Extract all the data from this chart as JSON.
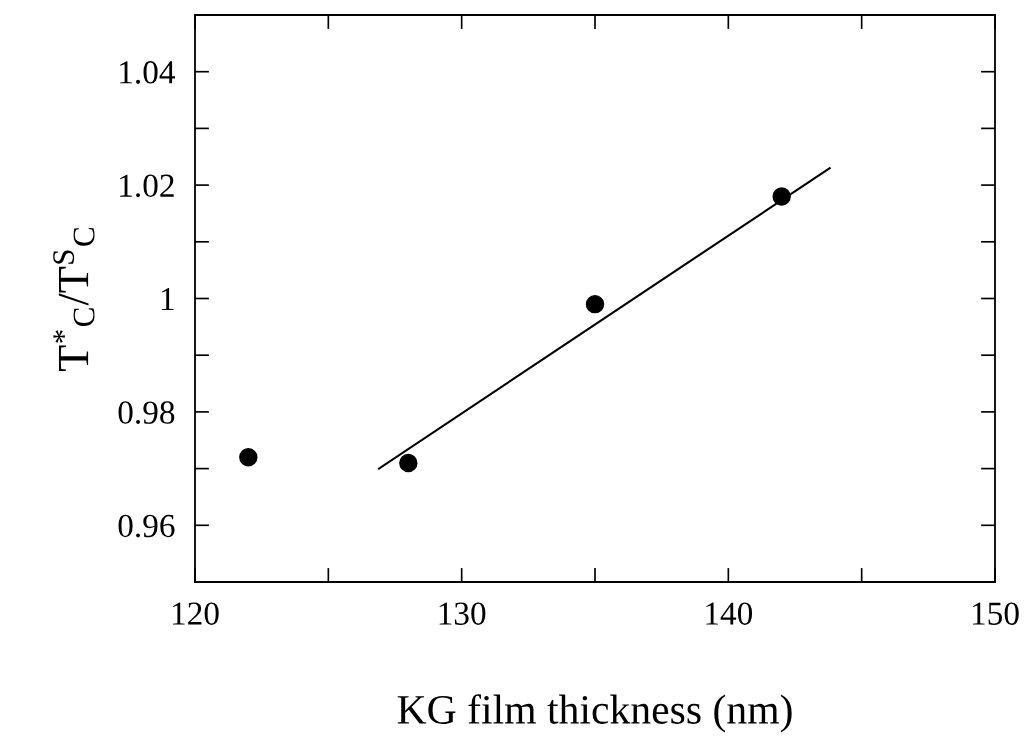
{
  "chart_data": {
    "type": "scatter",
    "xlabel": "KG film thickness (nm)",
    "ylabel": "T$^{*}$$_{C}$/T$^{S}$$_{C}$",
    "series": [
      {
        "x": [
          122,
          128,
          135,
          142
        ],
        "values": [
          0.972,
          0.971,
          0.999,
          1.018
        ],
        "color": "#000000",
        "marker": "circle"
      },
      {
        "type": "line",
        "x": [
          126.9,
          143.8
        ],
        "values": [
          0.97,
          1.023
        ],
        "color": "#000000",
        "marker": "none",
        "line_style": "solid"
      }
    ],
    "xlim": [
      120,
      150
    ],
    "ylim": [
      0.95,
      1.05
    ],
    "xticks": [
      120,
      {
        "value": 125,
        "label": null
      },
      130,
      {
        "value": 135,
        "label": null
      },
      140,
      {
        "value": 145,
        "label": null
      },
      150
    ],
    "yticks": [
      {
        "value": 0.95,
        "label": null
      },
      0.96,
      {
        "value": 0.97,
        "label": null
      },
      0.98,
      {
        "value": 0.99,
        "label": null
      },
      1,
      {
        "value": 1.01,
        "label": null
      },
      1.02,
      {
        "value": 1.03,
        "label": null
      },
      1.04,
      {
        "value": 1.05,
        "label": null
      }
    ],
    "grid": false
  }
}
